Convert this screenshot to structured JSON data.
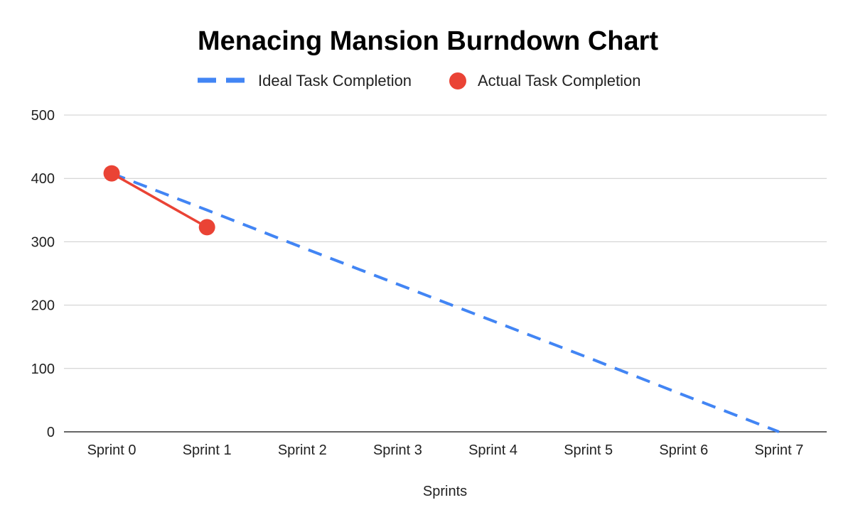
{
  "chart_data": {
    "type": "line",
    "title": "Menacing Mansion Burndown Chart",
    "xlabel": "Sprints",
    "ylabel": "",
    "categories": [
      "Sprint 0",
      "Sprint 1",
      "Sprint 2",
      "Sprint 3",
      "Sprint 4",
      "Sprint 5",
      "Sprint 6",
      "Sprint 7"
    ],
    "ylim": [
      0,
      500
    ],
    "yticks": [
      0,
      100,
      200,
      300,
      400,
      500
    ],
    "grid": true,
    "legend_position": "top",
    "series": [
      {
        "name": "Ideal Task Completion",
        "style": "dashed-line",
        "color": "#4285f4",
        "values": [
          408,
          350,
          291,
          233,
          175,
          117,
          58,
          0
        ]
      },
      {
        "name": "Actual Task Completion",
        "style": "line-with-markers",
        "color": "#ea4335",
        "values": [
          408,
          323,
          null,
          null,
          null,
          null,
          null,
          null
        ]
      }
    ]
  }
}
